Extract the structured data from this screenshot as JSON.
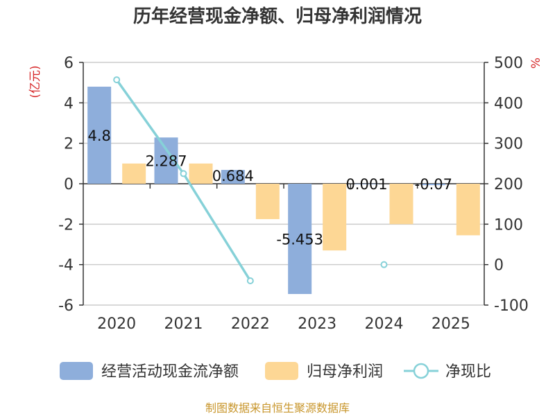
{
  "chart_data": {
    "type": "bar",
    "title": "历年经营现金净额、归母净利润情况",
    "categories": [
      "2020",
      "2021",
      "2022",
      "2023",
      "2024",
      "2025"
    ],
    "series": [
      {
        "name": "经营活动现金流净额",
        "kind": "bar",
        "axis": "left",
        "color": "#8eaedb",
        "values": [
          4.8,
          2.287,
          0.684,
          -5.453,
          0.001,
          -0.07
        ],
        "labels": [
          "4.8",
          "2.287",
          "0.684",
          "-5.453",
          "0.001",
          "-0.07"
        ]
      },
      {
        "name": "归母净利润",
        "kind": "bar",
        "axis": "left",
        "color": "#fdd795",
        "values": [
          1.0,
          1.0,
          -1.75,
          -3.3,
          -2.0,
          -2.55
        ]
      },
      {
        "name": "净现比",
        "kind": "line",
        "axis": "right",
        "color": "#86d1d8",
        "values": [
          457,
          225,
          -40,
          null,
          0,
          null
        ]
      }
    ],
    "y_left": {
      "unit": "(亿元)",
      "min": -6,
      "max": 6,
      "ticks": [
        6,
        4,
        2,
        0,
        -2,
        -4,
        -6
      ]
    },
    "y_right": {
      "unit": "%",
      "min": -100,
      "max": 500,
      "ticks": [
        500,
        400,
        300,
        200,
        100,
        0,
        -100
      ]
    },
    "grid": true,
    "legend": "bottom"
  },
  "source": "制图数据来自恒生聚源数据库"
}
